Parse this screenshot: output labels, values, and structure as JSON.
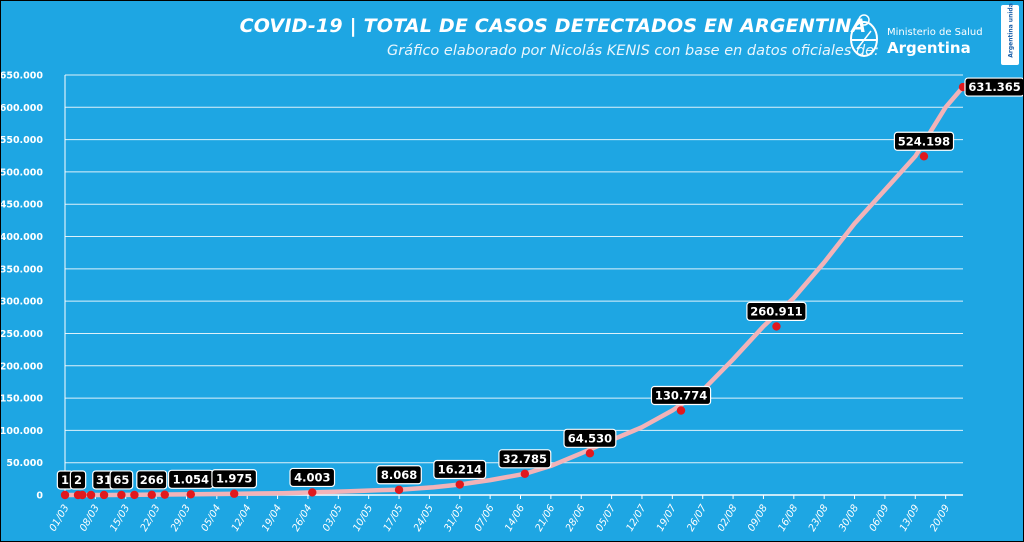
{
  "header": {
    "title": "COVID-19  |  TOTAL DE CASOS DETECTADOS EN ARGENTINA",
    "subtitle": "Gráfico elaborado por Nicolás KENIS con base en datos oficiales de:",
    "logo_ministry": "Ministerio de Salud",
    "logo_country": "Argentina",
    "side_badge": "Argentina unida"
  },
  "colors": {
    "background": "#1ea6e3",
    "grid": "#ffffff",
    "curve": "#f2b3b8",
    "points": "#e0191e",
    "label_bg": "#000000",
    "label_border": "#ffffff"
  },
  "chart_data": {
    "type": "line",
    "title": "COVID-19  |  TOTAL DE CASOS DETECTADOS EN ARGENTINA",
    "xlabel": "",
    "ylabel": "",
    "ylim": [
      0,
      650000
    ],
    "yticks": [
      "0",
      "50.000",
      "100.000",
      "150.000",
      "200.000",
      "250.000",
      "300.000",
      "350.000",
      "400.000",
      "450.000",
      "500.000",
      "550.000",
      "600.000",
      "650.000"
    ],
    "xticks": [
      "01/03",
      "08/03",
      "15/03",
      "22/03",
      "29/03",
      "05/04",
      "12/04",
      "19/04",
      "26/04",
      "03/05",
      "10/05",
      "17/05",
      "24/05",
      "31/05",
      "07/06",
      "14/06",
      "21/06",
      "28/06",
      "05/07",
      "12/07",
      "19/07",
      "26/07",
      "02/08",
      "09/08",
      "16/08",
      "23/08",
      "30/08",
      "06/09",
      "13/09",
      "20/09"
    ],
    "grid": true,
    "legend": "none",
    "curve_points": [
      {
        "day": 0,
        "value": 0
      },
      {
        "day": 10,
        "value": 50
      },
      {
        "day": 20,
        "value": 600
      },
      {
        "day": 30,
        "value": 1200
      },
      {
        "day": 40,
        "value": 2000
      },
      {
        "day": 50,
        "value": 2800
      },
      {
        "day": 57,
        "value": 4003
      },
      {
        "day": 65,
        "value": 5500
      },
      {
        "day": 72,
        "value": 7500
      },
      {
        "day": 77,
        "value": 8068
      },
      {
        "day": 85,
        "value": 12000
      },
      {
        "day": 91,
        "value": 16214
      },
      {
        "day": 98,
        "value": 23000
      },
      {
        "day": 106,
        "value": 32785
      },
      {
        "day": 112,
        "value": 45000
      },
      {
        "day": 119,
        "value": 64530
      },
      {
        "day": 126,
        "value": 85000
      },
      {
        "day": 133,
        "value": 105000
      },
      {
        "day": 140,
        "value": 130774
      },
      {
        "day": 147,
        "value": 162000
      },
      {
        "day": 154,
        "value": 210000
      },
      {
        "day": 161,
        "value": 260911
      },
      {
        "day": 168,
        "value": 305000
      },
      {
        "day": 175,
        "value": 360000
      },
      {
        "day": 182,
        "value": 420000
      },
      {
        "day": 189,
        "value": 472000
      },
      {
        "day": 196,
        "value": 524198
      },
      {
        "day": 203,
        "value": 600000
      },
      {
        "day": 207,
        "value": 631365
      }
    ],
    "labeled_points": [
      {
        "day": 0,
        "value": 1,
        "label": "1"
      },
      {
        "day": 3,
        "value": 2,
        "label": "2"
      },
      {
        "day": 9,
        "value": 31,
        "label": "31"
      },
      {
        "day": 13,
        "value": 65,
        "label": "65"
      },
      {
        "day": 20,
        "value": 266,
        "label": "266"
      },
      {
        "day": 29,
        "value": 1054,
        "label": "1.054"
      },
      {
        "day": 39,
        "value": 1975,
        "label": "1.975"
      },
      {
        "day": 57,
        "value": 4003,
        "label": "4.003"
      },
      {
        "day": 77,
        "value": 8068,
        "label": "8.068"
      },
      {
        "day": 91,
        "value": 16214,
        "label": "16.214"
      },
      {
        "day": 106,
        "value": 32785,
        "label": "32.785"
      },
      {
        "day": 121,
        "value": 64530,
        "label": "64.530"
      },
      {
        "day": 142,
        "value": 130774,
        "label": "130.774"
      },
      {
        "day": 164,
        "value": 260911,
        "label": "260.911"
      },
      {
        "day": 198,
        "value": 524198,
        "label": "524.198"
      },
      {
        "day": 207,
        "value": 631365,
        "label": "631.365"
      }
    ],
    "unlabeled_points": [
      {
        "day": 4,
        "value": 5
      },
      {
        "day": 6,
        "value": 12
      },
      {
        "day": 16,
        "value": 130
      },
      {
        "day": 23,
        "value": 500
      }
    ]
  }
}
